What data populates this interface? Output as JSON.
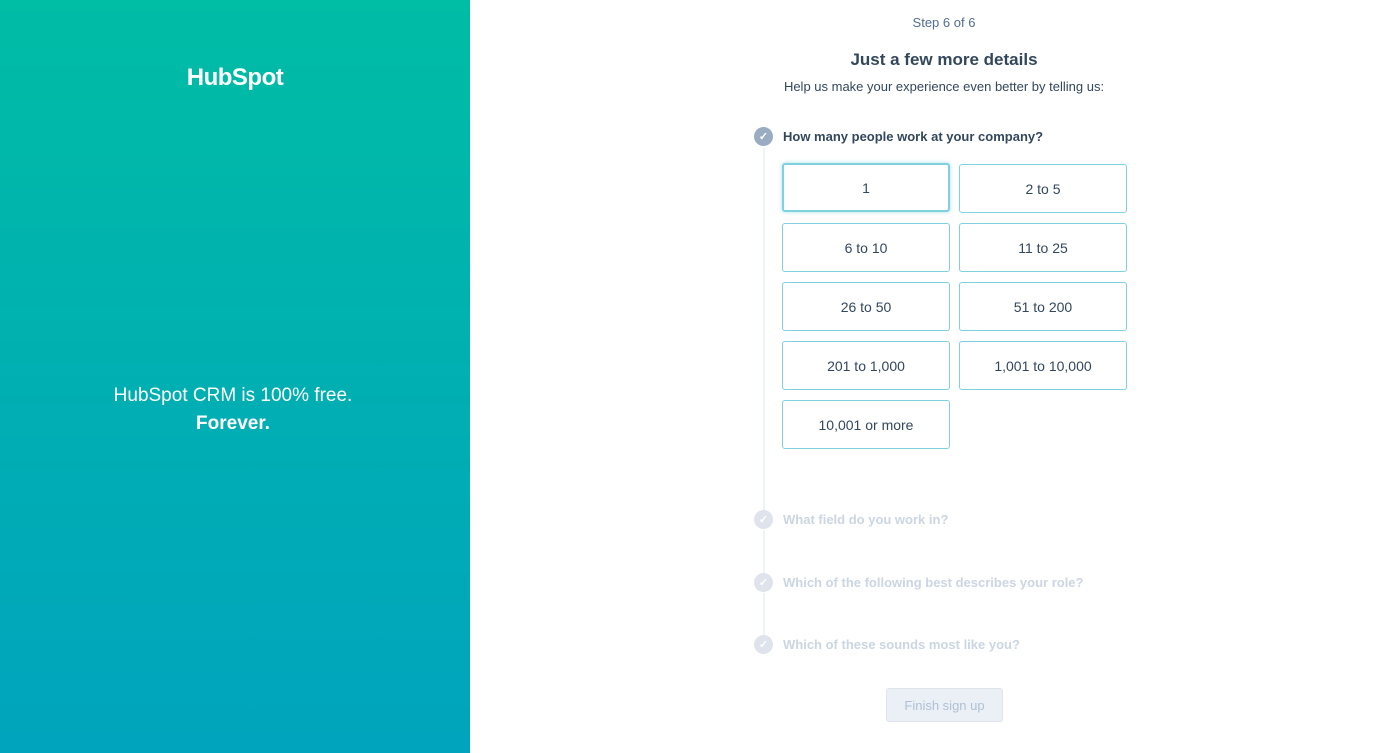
{
  "brand": {
    "logo_text": "HubSpot",
    "tagline": "HubSpot CRM is 100% free.",
    "tagline_bold": "Forever.",
    "primary": "#00bda5",
    "secondary": "#00a4bd"
  },
  "header": {
    "step": "Step 6 of 6",
    "title": "Just a few more details",
    "subtitle": "Help us make your experience even better by telling us:"
  },
  "questions": [
    {
      "label": "How many people work at your company?",
      "active": true,
      "options": [
        "1",
        "2 to 5",
        "6 to 10",
        "11 to 25",
        "26 to 50",
        "51 to 200",
        "201 to 1,000",
        "1,001 to 10,000",
        "10,001 or more"
      ],
      "selected": "1"
    },
    {
      "label": "What field do you work in?",
      "active": false
    },
    {
      "label": "Which of the following best describes your role?",
      "active": false
    },
    {
      "label": "Which of these sounds most like you?",
      "active": false
    }
  ],
  "finish_label": "Finish sign up"
}
